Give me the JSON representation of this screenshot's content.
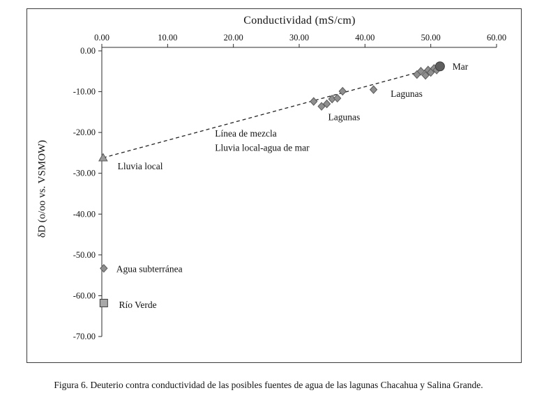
{
  "figure": {
    "caption": "Figura 6. Deuterio contra conductividad de las posibles fuentes de agua de las lagunas Chacahua y Salina Grande."
  },
  "chart_data": {
    "type": "scatter",
    "title": "Conductividad (mS/cm)",
    "ylabel": "δD (o/oo vs. VSMOW)",
    "xlim": [
      0,
      60
    ],
    "ylim": [
      -70,
      0
    ],
    "grid": false,
    "legend": "none",
    "xticks": [
      0,
      10,
      20,
      30,
      40,
      50,
      60
    ],
    "xtick_labels": [
      "0.00",
      "10.00",
      "20.00",
      "30.00",
      "40.00",
      "50.00",
      "60.00"
    ],
    "yticks": [
      0,
      -10,
      -20,
      -30,
      -40,
      -50,
      -60,
      -70
    ],
    "ytick_labels": [
      "0.00",
      "-10.00",
      "-20.00",
      "-30.00",
      "-40.00",
      "-50.00",
      "-60.00",
      "-70.00"
    ],
    "series": [
      {
        "name": "Lluvia local",
        "marker": "triangle",
        "fill": "#9a9a9a",
        "stroke": "#5a5a5a",
        "points": [
          [
            0.2,
            -26.2
          ]
        ]
      },
      {
        "name": "Agua subterránea",
        "marker": "diamond",
        "fill": "#8f8f8f",
        "stroke": "#5a5a5a",
        "points": [
          [
            0.3,
            -53.3
          ]
        ]
      },
      {
        "name": "Río Verde",
        "marker": "square",
        "fill": "#a8a8a8",
        "stroke": "#3c3c3c",
        "points": [
          [
            0.3,
            -61.8
          ]
        ]
      },
      {
        "name": "Lagunas",
        "marker": "diamond",
        "fill": "#8f8f8f",
        "stroke": "#5a5a5a",
        "points": [
          [
            32.2,
            -12.4
          ],
          [
            33.4,
            -13.6
          ],
          [
            34.2,
            -13.0
          ],
          [
            35.0,
            -11.8
          ],
          [
            35.8,
            -11.6
          ],
          [
            36.6,
            -9.9
          ],
          [
            41.3,
            -9.5
          ],
          [
            47.9,
            -5.8
          ],
          [
            48.5,
            -5.0
          ],
          [
            49.2,
            -6.0
          ],
          [
            49.6,
            -4.7
          ],
          [
            50.0,
            -5.3
          ],
          [
            50.5,
            -4.3
          ],
          [
            50.9,
            -4.7
          ]
        ]
      },
      {
        "name": "Mar",
        "marker": "circle",
        "fill": "#5f5f5f",
        "stroke": "#3c3c3c",
        "points": [
          [
            51.4,
            -3.8
          ]
        ]
      }
    ],
    "mixing_line": {
      "from": [
        0.2,
        -26.2
      ],
      "to": [
        51.4,
        -3.8
      ]
    },
    "annotations": [
      {
        "text": "Mar",
        "x": 53.3,
        "y": -3.9
      },
      {
        "text": "Lagunas",
        "x": 43.9,
        "y": -10.6
      },
      {
        "text": "Lagunas",
        "x": 34.4,
        "y": -16.3
      },
      {
        "text": "Línea de mezcla",
        "x": 17.2,
        "y": -20.3
      },
      {
        "text": "Lluvia local-agua de mar",
        "x": 17.2,
        "y": -23.8
      },
      {
        "text": "Lluvia local",
        "x": 2.4,
        "y": -28.3
      },
      {
        "text": "Agua subterránea",
        "x": 2.2,
        "y": -53.5
      },
      {
        "text": "Río Verde",
        "x": 2.6,
        "y": -62.3
      }
    ]
  }
}
